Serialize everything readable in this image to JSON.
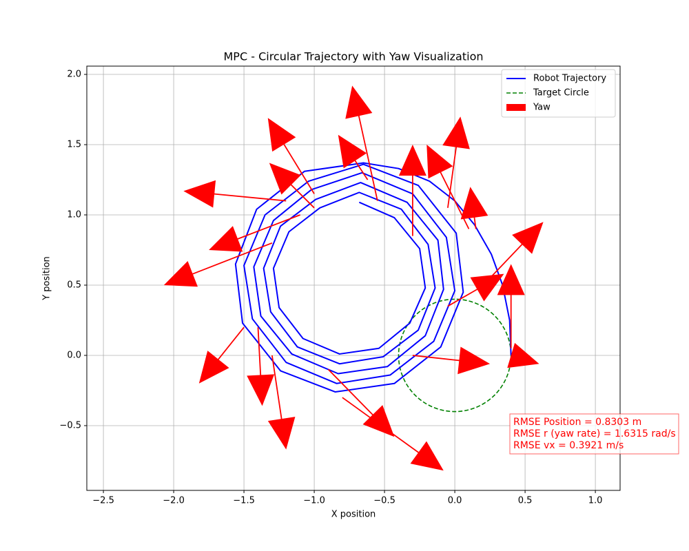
{
  "chart_data": {
    "type": "line",
    "title": "MPC - Circular Trajectory with Yaw Visualization",
    "xlabel": "X position",
    "ylabel": "Y position",
    "xlim": [
      -2.618,
      1.176
    ],
    "ylim": [
      -0.961,
      2.059
    ],
    "xticks": [
      {
        "value": -2.5,
        "label": "−2.5"
      },
      {
        "value": -2.0,
        "label": "−2.0"
      },
      {
        "value": -1.5,
        "label": "−1.5"
      },
      {
        "value": -1.0,
        "label": "−1.0"
      },
      {
        "value": -0.5,
        "label": "−0.5"
      },
      {
        "value": 0.0,
        "label": "0.0"
      },
      0.5,
      {
        "value": 1.0,
        "label": "1.0"
      }
    ],
    "yticks": [
      {
        "value": -0.5,
        "label": "−0.5"
      },
      {
        "value": 0.0,
        "label": "0.0"
      },
      0.5,
      {
        "value": 1.0,
        "label": "1.0"
      },
      1.5,
      {
        "value": 2.0,
        "label": "2.0"
      }
    ],
    "grid": true,
    "legend": "upper right",
    "series": [
      {
        "name": "Robot Trajectory",
        "color": "blue",
        "x": [
          0.4,
          0.39,
          0.34,
          0.26,
          0.14,
          0.0,
          -0.18,
          -0.4,
          -0.65,
          -1.07,
          -1.41,
          -1.56,
          -1.51,
          -1.24,
          -0.85,
          -0.43,
          -0.1,
          0.06,
          0.01,
          -0.26,
          -0.65,
          -1.04,
          -1.35,
          -1.5,
          -1.44,
          -1.2,
          -0.84,
          -0.46,
          -0.15,
          0.0,
          -0.06,
          -0.3,
          -0.66,
          -1.02,
          -1.29,
          -1.43,
          -1.38,
          -1.16,
          -0.83,
          -0.48,
          -0.21,
          -0.08,
          -0.12,
          -0.34,
          -0.67,
          -0.99,
          -1.24,
          -1.36,
          -1.31,
          -1.12,
          -0.82,
          -0.51,
          -0.26,
          -0.14,
          -0.19,
          -0.38,
          -0.68,
          -0.96,
          -1.18,
          -1.29,
          -1.25,
          -1.08,
          -0.82,
          -0.54,
          -0.32,
          -0.21,
          -0.25,
          -0.43,
          -0.68
        ],
        "y": [
          0.0,
          0.25,
          0.5,
          0.72,
          0.93,
          1.1,
          1.24,
          1.33,
          1.37,
          1.31,
          1.04,
          0.65,
          0.23,
          -0.11,
          -0.26,
          -0.2,
          0.06,
          0.45,
          0.87,
          1.21,
          1.36,
          1.24,
          1.0,
          0.64,
          0.26,
          -0.05,
          -0.2,
          -0.14,
          0.1,
          0.46,
          0.84,
          1.15,
          1.3,
          1.18,
          0.96,
          0.63,
          0.28,
          0.01,
          -0.13,
          -0.08,
          0.14,
          0.47,
          0.82,
          1.09,
          1.23,
          1.11,
          0.92,
          0.62,
          0.31,
          0.06,
          -0.06,
          -0.01,
          0.18,
          0.48,
          0.79,
          1.04,
          1.16,
          1.05,
          0.88,
          0.62,
          0.34,
          0.12,
          0.01,
          0.05,
          0.23,
          0.48,
          0.76,
          0.98,
          1.09
        ]
      }
    ],
    "target": {
      "name": "Target Circle",
      "color": "green",
      "center": [
        0,
        0
      ],
      "radius": 0.4
    },
    "quiver": {
      "name": "Yaw",
      "color": "red",
      "x": [
        0.4,
        -0.3,
        0.4,
        0.25,
        -0.05,
        0.15,
        -0.05,
        0.1,
        -0.3,
        -0.55,
        -0.62,
        -1.0,
        -1.0,
        -1.2,
        -1.1,
        -1.3,
        -1.5,
        -1.3,
        -1.4,
        -0.9,
        -0.8
      ],
      "y": [
        0.0,
        0.0,
        0.05,
        0.55,
        0.35,
        0.9,
        1.05,
        0.9,
        0.85,
        1.1,
        1.25,
        1.15,
        1.05,
        1.1,
        1.0,
        0.8,
        0.2,
        0.0,
        0.2,
        -0.1,
        -0.3
      ],
      "u": [
        0.2,
        0.55,
        0,
        0.38,
        0.4,
        -0.04,
        0.09,
        -0.3,
        0,
        -0.18,
        -0.21,
        -0.33,
        -0.32,
        -0.73,
        -0.65,
        -0.77,
        -0.32,
        0.1,
        0.03,
        0.47,
        0.72
      ],
      "v": [
        -0.06,
        -0.06,
        0.6,
        0.4,
        0.23,
        0.3,
        0.65,
        0.6,
        0.65,
        0.82,
        0.32,
        0.54,
        0.32,
        0.07,
        -0.25,
        -0.3,
        -0.4,
        -0.67,
        -0.56,
        -0.48,
        -0.52
      ]
    },
    "annotations": [
      "RMSE Position = 0.8303 m",
      "RMSE r (yaw rate) = 1.6315 rad/s",
      "RMSE vx = 0.3921 m/s"
    ]
  }
}
